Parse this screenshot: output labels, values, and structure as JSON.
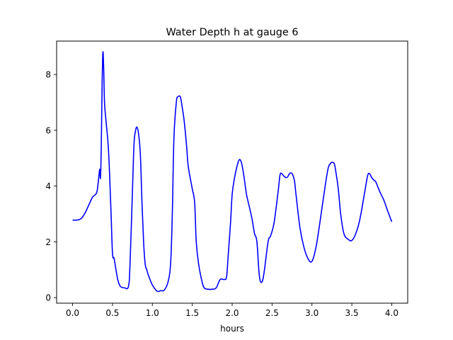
{
  "chart_data": {
    "type": "line",
    "title": "Water Depth h at gauge 6",
    "xlabel": "hours",
    "ylabel": "",
    "xlim": [
      -0.2,
      4.2
    ],
    "ylim": [
      -0.2,
      9.2
    ],
    "xticks": [
      0.0,
      0.5,
      1.0,
      1.5,
      2.0,
      2.5,
      3.0,
      3.5,
      4.0
    ],
    "xtick_labels": [
      "0.0",
      "0.5",
      "1.0",
      "1.5",
      "2.0",
      "2.5",
      "3.0",
      "3.5",
      "4.0"
    ],
    "yticks": [
      0,
      2,
      4,
      6,
      8
    ],
    "ytick_labels": [
      "0",
      "2",
      "4",
      "6",
      "8"
    ],
    "grid": false,
    "legend": "none",
    "series": [
      {
        "name": "",
        "color": "#0000ff",
        "x": [
          0.0,
          0.05,
          0.1,
          0.15,
          0.2,
          0.25,
          0.3,
          0.32,
          0.34,
          0.35,
          0.36,
          0.37,
          0.38,
          0.39,
          0.4,
          0.42,
          0.45,
          0.48,
          0.5,
          0.52,
          0.55,
          0.57,
          0.6,
          0.65,
          0.7,
          0.72,
          0.75,
          0.77,
          0.79,
          0.81,
          0.83,
          0.85,
          0.87,
          0.89,
          0.91,
          0.93,
          0.95,
          1.0,
          1.05,
          1.08,
          1.1,
          1.15,
          1.2,
          1.23,
          1.25,
          1.27,
          1.3,
          1.32,
          1.35,
          1.37,
          1.4,
          1.43,
          1.45,
          1.5,
          1.53,
          1.55,
          1.58,
          1.62,
          1.65,
          1.7,
          1.75,
          1.8,
          1.85,
          1.9,
          1.93,
          1.95,
          1.98,
          2.0,
          2.03,
          2.06,
          2.09,
          2.12,
          2.15,
          2.18,
          2.22,
          2.25,
          2.28,
          2.31,
          2.34,
          2.37,
          2.4,
          2.45,
          2.48,
          2.52,
          2.55,
          2.58,
          2.6,
          2.62,
          2.65,
          2.68,
          2.7,
          2.72,
          2.75,
          2.78,
          2.8,
          2.85,
          2.9,
          2.95,
          3.0,
          3.05,
          3.1,
          3.15,
          3.2,
          3.23,
          3.25,
          3.28,
          3.3,
          3.33,
          3.36,
          3.4,
          3.45,
          3.5,
          3.55,
          3.6,
          3.65,
          3.68,
          3.7,
          3.72,
          3.75,
          3.78,
          3.8,
          3.85,
          3.9,
          3.95,
          4.0
        ],
        "y": [
          2.78,
          2.78,
          2.82,
          3.0,
          3.3,
          3.6,
          3.75,
          4.1,
          4.6,
          4.3,
          5.5,
          7.6,
          8.8,
          8.2,
          7.0,
          6.3,
          5.3,
          3.2,
          1.6,
          1.4,
          0.9,
          0.6,
          0.4,
          0.35,
          0.4,
          1.2,
          3.8,
          5.5,
          6.0,
          6.1,
          5.8,
          5.1,
          3.4,
          2.0,
          1.2,
          1.0,
          0.8,
          0.45,
          0.25,
          0.22,
          0.25,
          0.27,
          0.6,
          1.3,
          3.0,
          5.7,
          7.0,
          7.2,
          7.2,
          6.9,
          6.3,
          5.4,
          4.7,
          3.9,
          3.4,
          2.0,
          1.2,
          0.6,
          0.35,
          0.3,
          0.3,
          0.35,
          0.65,
          0.65,
          0.75,
          1.5,
          2.7,
          3.7,
          4.3,
          4.7,
          4.95,
          4.8,
          4.3,
          3.7,
          3.2,
          2.8,
          2.3,
          2.0,
          0.8,
          0.55,
          0.9,
          2.0,
          2.2,
          2.6,
          3.2,
          3.9,
          4.4,
          4.45,
          4.35,
          4.3,
          4.35,
          4.45,
          4.45,
          4.2,
          3.7,
          2.5,
          1.8,
          1.4,
          1.3,
          1.8,
          2.7,
          3.7,
          4.6,
          4.8,
          4.85,
          4.8,
          4.5,
          3.9,
          3.0,
          2.3,
          2.1,
          2.05,
          2.3,
          2.8,
          3.6,
          4.1,
          4.4,
          4.45,
          4.3,
          4.2,
          4.15,
          3.8,
          3.5,
          3.1,
          2.72
        ]
      }
    ]
  }
}
